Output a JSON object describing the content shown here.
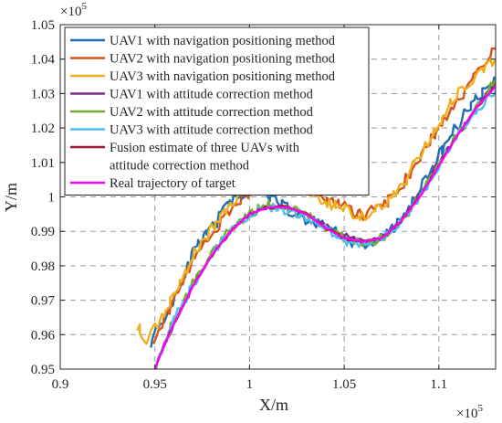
{
  "chart_data": {
    "type": "line",
    "xlabel": "X/m",
    "ylabel": "Y/m",
    "x_exponent_label": "×10",
    "x_exponent_power": "5",
    "y_exponent_label": "×10",
    "y_exponent_power": "5",
    "xlim": [
      0.9,
      1.13
    ],
    "ylim": [
      0.95,
      1.05
    ],
    "x_ticks": [
      0.9,
      0.95,
      1.0,
      1.05,
      1.1
    ],
    "x_tick_labels": [
      "0.9",
      "0.95",
      "1",
      "1.05",
      "1.1"
    ],
    "y_ticks": [
      0.95,
      0.96,
      0.97,
      0.98,
      0.99,
      1.0,
      1.01,
      1.02,
      1.03,
      1.04,
      1.05
    ],
    "y_tick_labels": [
      "0.95",
      "0.96",
      "0.97",
      "0.98",
      "0.99",
      "1",
      "1.01",
      "1.02",
      "1.03",
      "1.04",
      "1.05"
    ],
    "grid": true,
    "legend_position": "top-left",
    "legend_entries": [
      {
        "label": "UAV1 with navigation positioning method",
        "color": "#1f6fb4"
      },
      {
        "label": "UAV2 with navigation positioning method",
        "color": "#d95319"
      },
      {
        "label": "UAV3 with navigation positioning method",
        "color": "#edb120"
      },
      {
        "label": "UAV1 with attitude correction method",
        "color": "#7e2f8e"
      },
      {
        "label": "UAV2 with attitude correction method",
        "color": "#77ac30"
      },
      {
        "label": "UAV3 with attitude correction method",
        "color": "#4dbeee"
      },
      {
        "label": "Fusion estimate of three UAVs with attitude correction method",
        "label_lines": [
          "Fusion estimate of three UAVs with",
          "attitude correction method"
        ],
        "color": "#a2142f"
      },
      {
        "label": "Real trajectory of target",
        "color": "#ff00ff"
      }
    ],
    "series": [
      {
        "name": "UAV1 with navigation positioning method",
        "color": "#1f6fb4",
        "noise": 0.0018,
        "seed": 11,
        "points": [
          [
            0.948,
            0.958
          ],
          [
            0.952,
            0.962
          ],
          [
            0.958,
            0.968
          ],
          [
            0.965,
            0.977
          ],
          [
            0.972,
            0.985
          ],
          [
            0.98,
            0.991
          ],
          [
            0.99,
            0.999
          ],
          [
            1.0,
            1.002
          ],
          [
            1.01,
            1.0
          ],
          [
            1.02,
            0.997
          ],
          [
            1.03,
            0.993
          ],
          [
            1.04,
            0.992
          ],
          [
            1.05,
            0.988
          ],
          [
            1.06,
            0.986
          ],
          [
            1.07,
            0.988
          ],
          [
            1.08,
            0.993
          ],
          [
            1.09,
            1.002
          ],
          [
            1.1,
            1.012
          ],
          [
            1.11,
            1.021
          ],
          [
            1.12,
            1.029
          ],
          [
            1.13,
            1.034
          ]
        ]
      },
      {
        "name": "UAV2 with navigation positioning method",
        "color": "#d95319",
        "noise": 0.0017,
        "seed": 23,
        "points": [
          [
            0.95,
            0.959
          ],
          [
            0.955,
            0.965
          ],
          [
            0.962,
            0.972
          ],
          [
            0.97,
            0.981
          ],
          [
            0.98,
            0.989
          ],
          [
            0.99,
            0.996
          ],
          [
            1.0,
            1.002
          ],
          [
            1.01,
            1.004
          ],
          [
            1.02,
            1.003
          ],
          [
            1.03,
            1.002
          ],
          [
            1.04,
            0.999
          ],
          [
            1.05,
            0.997
          ],
          [
            1.06,
            0.995
          ],
          [
            1.07,
            0.997
          ],
          [
            1.08,
            1.003
          ],
          [
            1.09,
            1.011
          ],
          [
            1.1,
            1.02
          ],
          [
            1.11,
            1.028
          ],
          [
            1.12,
            1.035
          ],
          [
            1.13,
            1.043
          ]
        ]
      },
      {
        "name": "UAV3 with navigation positioning method",
        "color": "#edb120",
        "noise": 0.0018,
        "seed": 37,
        "points": [
          [
            0.94,
            0.963
          ],
          [
            0.944,
            0.958
          ],
          [
            0.948,
            0.96
          ],
          [
            0.955,
            0.966
          ],
          [
            0.962,
            0.974
          ],
          [
            0.97,
            0.983
          ],
          [
            0.98,
            0.991
          ],
          [
            0.99,
            0.998
          ],
          [
            1.0,
            1.004
          ],
          [
            1.01,
            1.006
          ],
          [
            1.02,
            1.004
          ],
          [
            1.03,
            1.002
          ],
          [
            1.04,
            0.999
          ],
          [
            1.05,
            0.996
          ],
          [
            1.06,
            0.994
          ],
          [
            1.07,
            0.997
          ],
          [
            1.08,
            1.003
          ],
          [
            1.09,
            1.012
          ],
          [
            1.1,
            1.021
          ],
          [
            1.11,
            1.03
          ],
          [
            1.12,
            1.036
          ],
          [
            1.13,
            1.04
          ]
        ]
      },
      {
        "name": "UAV1 with attitude correction method",
        "color": "#7e2f8e",
        "noise": 0.0006,
        "seed": 41,
        "points": [
          [
            0.95,
            0.95
          ],
          [
            0.955,
            0.957
          ],
          [
            0.96,
            0.963
          ],
          [
            0.97,
            0.974
          ],
          [
            0.98,
            0.983
          ],
          [
            0.99,
            0.99
          ],
          [
            1.0,
            0.995
          ],
          [
            1.01,
            0.997
          ],
          [
            1.02,
            0.997
          ],
          [
            1.03,
            0.995
          ],
          [
            1.04,
            0.992
          ],
          [
            1.05,
            0.989
          ],
          [
            1.06,
            0.987
          ],
          [
            1.07,
            0.988
          ],
          [
            1.08,
            0.993
          ],
          [
            1.09,
            1.001
          ],
          [
            1.1,
            1.01
          ],
          [
            1.11,
            1.018
          ],
          [
            1.12,
            1.026
          ],
          [
            1.13,
            1.033
          ]
        ]
      },
      {
        "name": "UAV2 with attitude correction method",
        "color": "#77ac30",
        "noise": 0.0013,
        "seed": 53,
        "points": [
          [
            0.95,
            0.951
          ],
          [
            0.955,
            0.958
          ],
          [
            0.96,
            0.964
          ],
          [
            0.97,
            0.975
          ],
          [
            0.98,
            0.984
          ],
          [
            0.99,
            0.991
          ],
          [
            1.0,
            0.995
          ],
          [
            1.01,
            0.998
          ],
          [
            1.02,
            0.997
          ],
          [
            1.03,
            0.995
          ],
          [
            1.04,
            0.991
          ],
          [
            1.05,
            0.988
          ],
          [
            1.06,
            0.986
          ],
          [
            1.07,
            0.988
          ],
          [
            1.08,
            0.993
          ],
          [
            1.09,
            1.0
          ],
          [
            1.1,
            1.009
          ],
          [
            1.11,
            1.018
          ],
          [
            1.12,
            1.026
          ],
          [
            1.13,
            1.034
          ]
        ]
      },
      {
        "name": "UAV3 with attitude correction method",
        "color": "#4dbeee",
        "noise": 0.0012,
        "seed": 67,
        "points": [
          [
            0.95,
            0.951
          ],
          [
            0.955,
            0.957
          ],
          [
            0.96,
            0.964
          ],
          [
            0.97,
            0.974
          ],
          [
            0.98,
            0.983
          ],
          [
            0.99,
            0.99
          ],
          [
            1.0,
            0.995
          ],
          [
            1.01,
            0.997
          ],
          [
            1.02,
            0.996
          ],
          [
            1.03,
            0.994
          ],
          [
            1.04,
            0.991
          ],
          [
            1.05,
            0.987
          ],
          [
            1.06,
            0.986
          ],
          [
            1.07,
            0.988
          ],
          [
            1.08,
            0.993
          ],
          [
            1.09,
            1.0
          ],
          [
            1.1,
            1.009
          ],
          [
            1.11,
            1.018
          ],
          [
            1.12,
            1.025
          ],
          [
            1.13,
            1.031
          ]
        ]
      },
      {
        "name": "Fusion estimate of three UAVs with attitude correction method",
        "color": "#a2142f",
        "noise": 0.0004,
        "seed": 71,
        "points": [
          [
            0.95,
            0.95
          ],
          [
            0.955,
            0.957
          ],
          [
            0.96,
            0.963
          ],
          [
            0.97,
            0.974
          ],
          [
            0.98,
            0.983
          ],
          [
            0.99,
            0.99
          ],
          [
            1.0,
            0.995
          ],
          [
            1.01,
            0.997
          ],
          [
            1.02,
            0.997
          ],
          [
            1.03,
            0.995
          ],
          [
            1.04,
            0.991
          ],
          [
            1.05,
            0.988
          ],
          [
            1.06,
            0.987
          ],
          [
            1.07,
            0.988
          ],
          [
            1.08,
            0.993
          ],
          [
            1.09,
            1.0
          ],
          [
            1.1,
            1.009
          ],
          [
            1.11,
            1.018
          ],
          [
            1.12,
            1.026
          ],
          [
            1.13,
            1.032
          ]
        ]
      },
      {
        "name": "Real trajectory of target",
        "color": "#ff00ff",
        "noise": 0.0,
        "seed": 0,
        "points": [
          [
            0.95,
            0.95
          ],
          [
            0.955,
            0.957
          ],
          [
            0.96,
            0.963
          ],
          [
            0.97,
            0.974
          ],
          [
            0.98,
            0.983
          ],
          [
            0.99,
            0.99
          ],
          [
            1.0,
            0.995
          ],
          [
            1.01,
            0.997
          ],
          [
            1.02,
            0.997
          ],
          [
            1.03,
            0.995
          ],
          [
            1.04,
            0.991
          ],
          [
            1.05,
            0.988
          ],
          [
            1.06,
            0.987
          ],
          [
            1.07,
            0.988
          ],
          [
            1.08,
            0.993
          ],
          [
            1.09,
            1.0
          ],
          [
            1.1,
            1.009
          ],
          [
            1.11,
            1.018
          ],
          [
            1.12,
            1.026
          ],
          [
            1.13,
            1.032
          ]
        ]
      }
    ]
  }
}
